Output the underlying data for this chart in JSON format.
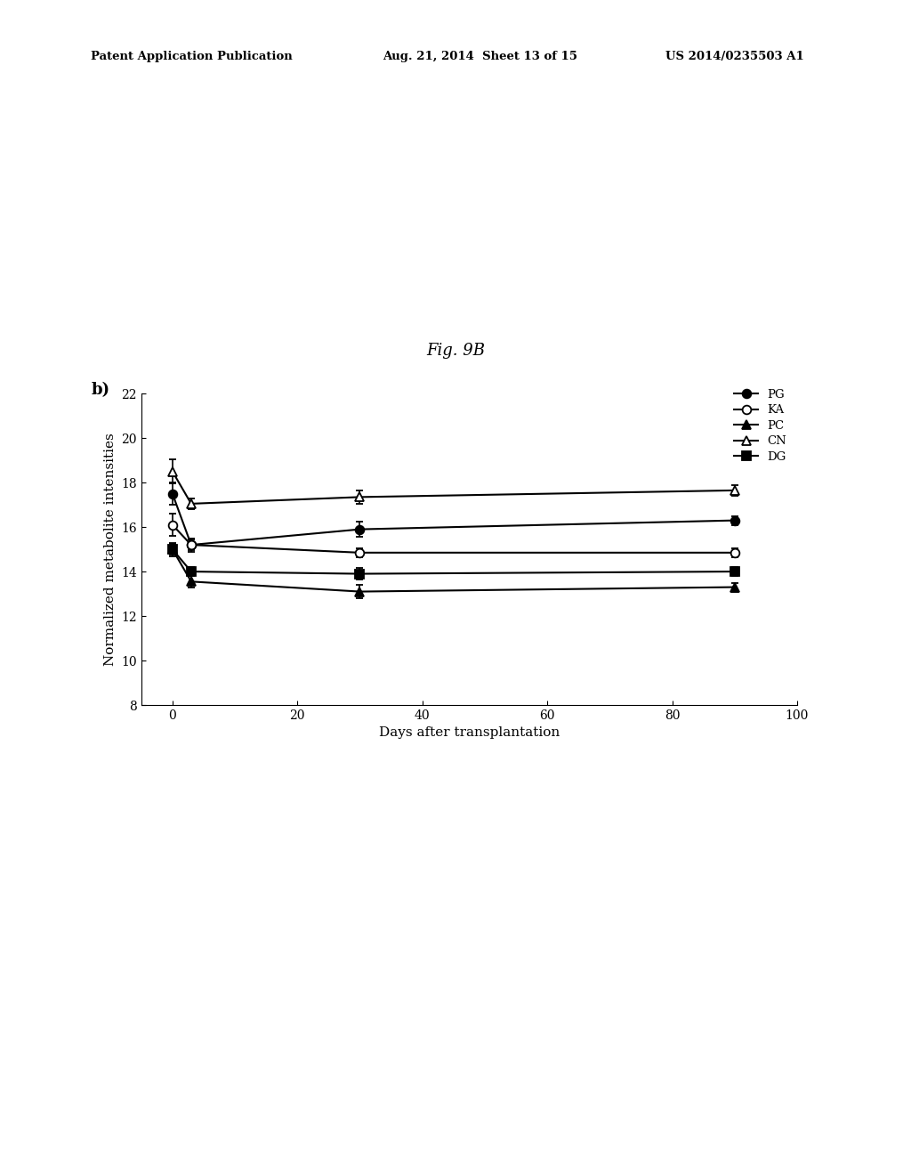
{
  "title": "Fig. 9B",
  "label_b": "b)",
  "xlabel": "Days after transplantation",
  "ylabel": "Normalized metabolite intensities",
  "x_values": [
    0,
    3,
    30,
    90
  ],
  "series": {
    "PG": {
      "y": [
        17.5,
        15.2,
        15.9,
        16.3
      ],
      "yerr": [
        0.5,
        0.3,
        0.35,
        0.2
      ],
      "marker": "o",
      "fillstyle": "full",
      "color": "black",
      "label": "PG"
    },
    "KA": {
      "y": [
        16.1,
        15.2,
        14.85,
        14.85
      ],
      "yerr": [
        0.5,
        0.25,
        0.2,
        0.2
      ],
      "marker": "o",
      "fillstyle": "none",
      "color": "black",
      "label": "KA"
    },
    "PC": {
      "y": [
        15.0,
        13.55,
        13.1,
        13.3
      ],
      "yerr": [
        0.3,
        0.25,
        0.3,
        0.2
      ],
      "marker": "^",
      "fillstyle": "full",
      "color": "black",
      "label": "PC"
    },
    "CN": {
      "y": [
        18.5,
        17.05,
        17.35,
        17.65
      ],
      "yerr": [
        0.55,
        0.25,
        0.3,
        0.25
      ],
      "marker": "^",
      "fillstyle": "none",
      "color": "black",
      "label": "CN"
    },
    "DG": {
      "y": [
        15.0,
        14.0,
        13.9,
        14.0
      ],
      "yerr": [
        0.25,
        0.2,
        0.25,
        0.2
      ],
      "marker": "s",
      "fillstyle": "full",
      "color": "black",
      "label": "DG"
    }
  },
  "xlim": [
    -5,
    100
  ],
  "ylim": [
    8,
    22
  ],
  "yticks": [
    8,
    10,
    12,
    14,
    16,
    18,
    20,
    22
  ],
  "xticks": [
    0,
    20,
    40,
    60,
    80,
    100
  ],
  "header_left": "Patent Application Publication",
  "header_mid": "Aug. 21, 2014  Sheet 13 of 15",
  "header_right": "US 2014/0235503 A1",
  "background_color": "#ffffff",
  "marker_size": 7,
  "linewidth": 1.5,
  "capsize": 3,
  "elinewidth": 1.2
}
